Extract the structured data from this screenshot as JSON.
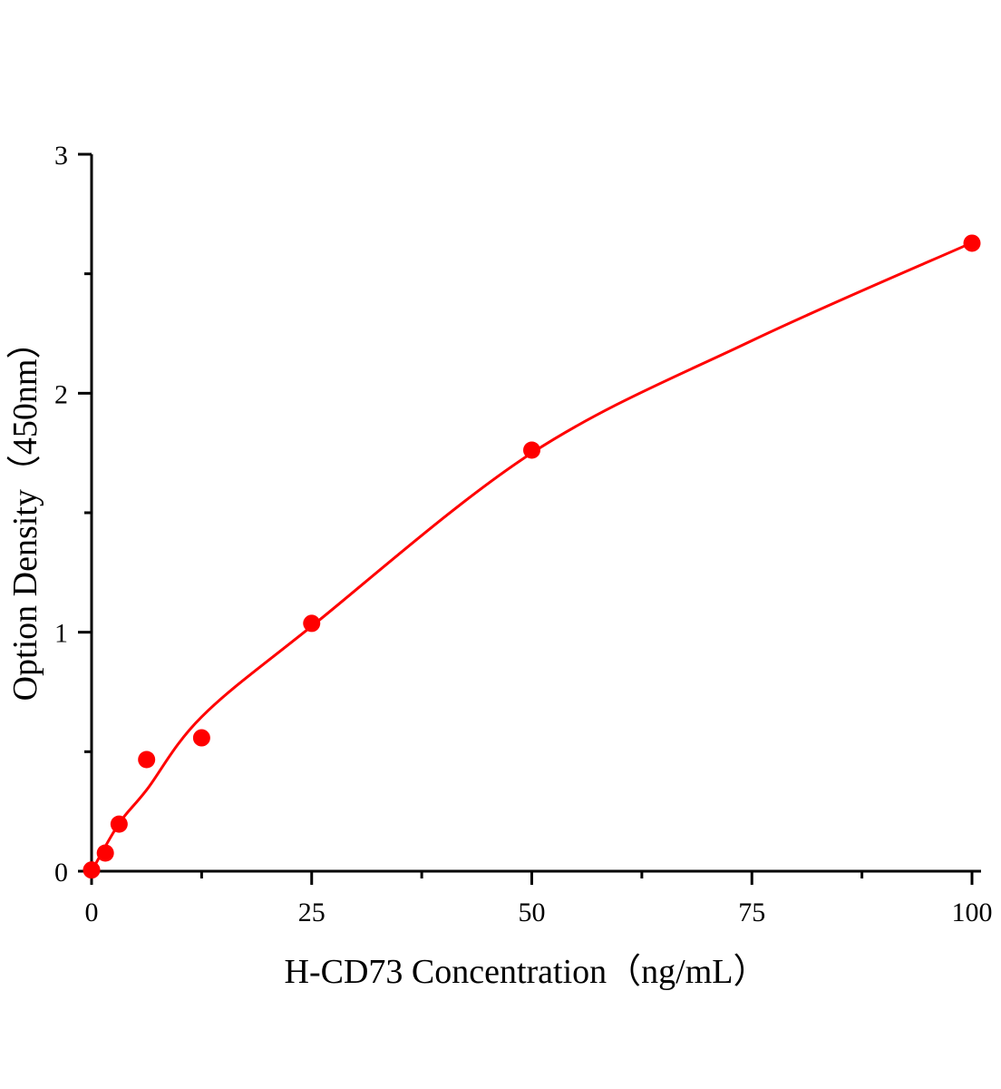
{
  "chart_data": {
    "type": "scatter",
    "title": "",
    "xlabel": "H-CD73 Concentration（ng/mL）",
    "ylabel": "Option Density（450nm）",
    "xlim": [
      0,
      100
    ],
    "ylim": [
      0,
      3
    ],
    "x_ticks": [
      "0",
      "25",
      "50",
      "75",
      "100"
    ],
    "y_ticks": [
      "0",
      "1",
      "2",
      "3"
    ],
    "grid": false,
    "legend": "none",
    "color": "#ff0000",
    "series": [
      {
        "x": [
          0,
          1.5625,
          3.125,
          6.25,
          12.5,
          25,
          50,
          100
        ],
        "y": [
          0.005,
          0.076,
          0.197,
          0.467,
          0.558,
          1.037,
          1.762,
          2.628
        ]
      }
    ],
    "fit_curve": {
      "x": [
        0,
        3.125,
        6.25,
        12.5,
        25,
        50,
        75,
        100
      ],
      "y": [
        0,
        0.2,
        0.34,
        0.646,
        1.025,
        1.75,
        2.22,
        2.63
      ]
    }
  }
}
